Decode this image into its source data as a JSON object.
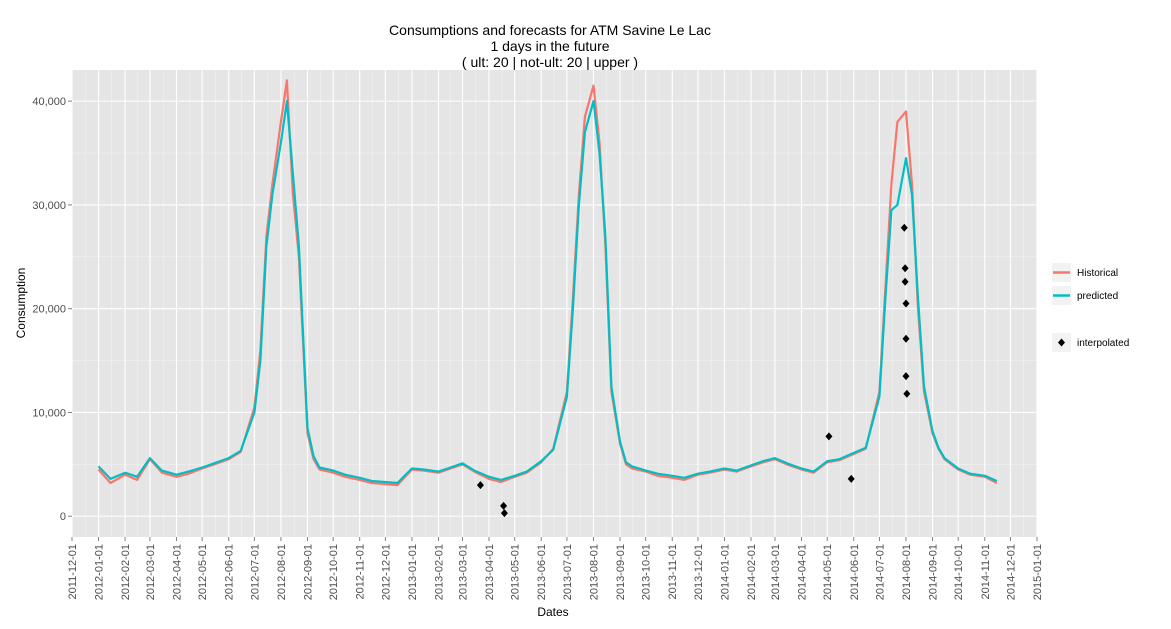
{
  "chart_data": {
    "type": "line",
    "title_lines": [
      "Consumptions and forecasts for ATM Savine Le Lac",
      "1 days in the future",
      "( ult: 20 | not-ult: 20 | upper )"
    ],
    "xlabel": "Dates",
    "ylabel": "Consumption",
    "xlim": [
      "2011-12-01",
      "2015-01-01"
    ],
    "ylim": [
      -2000,
      43000
    ],
    "yticks": [
      0,
      10000,
      20000,
      30000,
      40000
    ],
    "ytick_labels": [
      "0",
      "10,000",
      "20,000",
      "30,000",
      "40,000"
    ],
    "xticks": [
      "2011-12-01",
      "2012-01-01",
      "2012-02-01",
      "2012-03-01",
      "2012-04-01",
      "2012-05-01",
      "2012-06-01",
      "2012-07-01",
      "2012-08-01",
      "2012-09-01",
      "2012-10-01",
      "2012-11-01",
      "2012-12-01",
      "2013-01-01",
      "2013-02-01",
      "2013-03-01",
      "2013-04-01",
      "2013-05-01",
      "2013-06-01",
      "2013-07-01",
      "2013-08-01",
      "2013-09-01",
      "2013-10-01",
      "2013-11-01",
      "2013-12-01",
      "2014-01-01",
      "2014-02-01",
      "2014-03-01",
      "2014-04-01",
      "2014-05-01",
      "2014-06-01",
      "2014-07-01",
      "2014-08-01",
      "2014-09-01",
      "2014-10-01",
      "2014-11-01",
      "2014-12-01",
      "2015-01-01"
    ],
    "grid": true,
    "legend_position": "right",
    "series": [
      {
        "name": "Historical",
        "color": "#F8766D",
        "x": [
          "2012-01-01",
          "2012-01-15",
          "2012-02-01",
          "2012-02-15",
          "2012-03-01",
          "2012-03-15",
          "2012-04-01",
          "2012-04-15",
          "2012-05-01",
          "2012-05-15",
          "2012-06-01",
          "2012-06-15",
          "2012-07-01",
          "2012-07-08",
          "2012-07-15",
          "2012-07-22",
          "2012-08-01",
          "2012-08-08",
          "2012-08-15",
          "2012-08-22",
          "2012-09-01",
          "2012-09-08",
          "2012-09-15",
          "2012-10-01",
          "2012-10-15",
          "2012-11-01",
          "2012-11-15",
          "2012-12-01",
          "2012-12-15",
          "2013-01-01",
          "2013-01-15",
          "2013-02-01",
          "2013-02-15",
          "2013-03-01",
          "2013-03-15",
          "2013-04-01",
          "2013-04-15",
          "2013-05-01",
          "2013-05-15",
          "2013-06-01",
          "2013-06-15",
          "2013-07-01",
          "2013-07-08",
          "2013-07-15",
          "2013-07-22",
          "2013-08-01",
          "2013-08-08",
          "2013-08-15",
          "2013-08-22",
          "2013-09-01",
          "2013-09-08",
          "2013-09-15",
          "2013-10-01",
          "2013-10-15",
          "2013-11-01",
          "2013-11-15",
          "2013-12-01",
          "2013-12-15",
          "2014-01-01",
          "2014-01-15",
          "2014-02-01",
          "2014-02-15",
          "2014-03-01",
          "2014-03-15",
          "2014-04-01",
          "2014-04-15",
          "2014-05-01",
          "2014-05-15",
          "2014-06-01",
          "2014-06-15",
          "2014-07-01",
          "2014-07-08",
          "2014-07-15",
          "2014-07-22",
          "2014-08-01",
          "2014-08-08",
          "2014-08-15",
          "2014-08-22",
          "2014-09-01",
          "2014-09-08",
          "2014-09-15",
          "2014-10-01",
          "2014-10-15",
          "2014-11-01",
          "2014-11-15"
        ],
        "values": [
          4500,
          3200,
          4000,
          3500,
          5500,
          4200,
          3800,
          4100,
          4600,
          5000,
          5500,
          6200,
          10500,
          16000,
          27000,
          32000,
          38000,
          42000,
          31000,
          25000,
          8000,
          5500,
          4500,
          4200,
          3800,
          3500,
          3200,
          3100,
          3000,
          4500,
          4400,
          4200,
          4600,
          5000,
          4300,
          3600,
          3300,
          3800,
          4200,
          5200,
          6500,
          12000,
          21000,
          31000,
          38500,
          41500,
          36000,
          26000,
          12000,
          7000,
          5000,
          4600,
          4300,
          3900,
          3700,
          3500,
          4000,
          4200,
          4500,
          4300,
          4800,
          5200,
          5500,
          5000,
          4500,
          4200,
          5200,
          5400,
          6000,
          6500,
          12000,
          22000,
          32000,
          38000,
          39000,
          32000,
          20000,
          12000,
          8000,
          6500,
          5500,
          4500,
          4000,
          3800,
          3200
        ]
      },
      {
        "name": "predicted",
        "color": "#00BFC4",
        "x": [
          "2012-01-01",
          "2012-01-15",
          "2012-02-01",
          "2012-02-15",
          "2012-03-01",
          "2012-03-15",
          "2012-04-01",
          "2012-04-15",
          "2012-05-01",
          "2012-05-15",
          "2012-06-01",
          "2012-06-15",
          "2012-07-01",
          "2012-07-08",
          "2012-07-15",
          "2012-07-22",
          "2012-08-01",
          "2012-08-08",
          "2012-08-15",
          "2012-08-22",
          "2012-09-01",
          "2012-09-08",
          "2012-09-15",
          "2012-10-01",
          "2012-10-15",
          "2012-11-01",
          "2012-11-15",
          "2012-12-01",
          "2012-12-15",
          "2013-01-01",
          "2013-01-15",
          "2013-02-01",
          "2013-02-15",
          "2013-03-01",
          "2013-03-15",
          "2013-04-01",
          "2013-04-15",
          "2013-05-01",
          "2013-05-15",
          "2013-06-01",
          "2013-06-15",
          "2013-07-01",
          "2013-07-08",
          "2013-07-15",
          "2013-07-22",
          "2013-08-01",
          "2013-08-08",
          "2013-08-15",
          "2013-08-22",
          "2013-09-01",
          "2013-09-08",
          "2013-09-15",
          "2013-10-01",
          "2013-10-15",
          "2013-11-01",
          "2013-11-15",
          "2013-12-01",
          "2013-12-15",
          "2014-01-01",
          "2014-01-15",
          "2014-02-01",
          "2014-02-15",
          "2014-03-01",
          "2014-03-15",
          "2014-04-01",
          "2014-04-15",
          "2014-05-01",
          "2014-05-15",
          "2014-06-01",
          "2014-06-15",
          "2014-07-01",
          "2014-07-08",
          "2014-07-15",
          "2014-07-22",
          "2014-08-01",
          "2014-08-08",
          "2014-08-15",
          "2014-08-22",
          "2014-09-01",
          "2014-09-08",
          "2014-09-15",
          "2014-10-01",
          "2014-10-15",
          "2014-11-01",
          "2014-11-15"
        ],
        "values": [
          4800,
          3600,
          4200,
          3800,
          5600,
          4400,
          4000,
          4300,
          4700,
          5100,
          5600,
          6300,
          10000,
          15000,
          26000,
          31000,
          36000,
          40000,
          33000,
          26000,
          8500,
          5800,
          4700,
          4400,
          4000,
          3700,
          3400,
          3300,
          3200,
          4600,
          4500,
          4300,
          4700,
          5100,
          4400,
          3800,
          3500,
          3900,
          4300,
          5300,
          6400,
          11500,
          20000,
          30000,
          37000,
          40000,
          35000,
          27000,
          12500,
          7200,
          5200,
          4800,
          4400,
          4100,
          3900,
          3700,
          4100,
          4300,
          4600,
          4400,
          4900,
          5300,
          5600,
          5100,
          4600,
          4300,
          5300,
          5500,
          6100,
          6600,
          11500,
          21000,
          29500,
          30000,
          34500,
          31000,
          21000,
          12500,
          8200,
          6600,
          5600,
          4600,
          4100,
          3900,
          3400
        ]
      }
    ],
    "interpolated": {
      "name": "interpolated",
      "color": "#000000",
      "x": [
        "2013-03-22",
        "2013-04-18",
        "2013-04-19",
        "2014-05-03",
        "2014-05-29",
        "2014-07-30",
        "2014-07-31",
        "2014-07-31",
        "2014-08-01",
        "2014-08-01",
        "2014-08-01",
        "2014-08-02"
      ],
      "values": [
        3000,
        1000,
        300,
        7700,
        3600,
        27800,
        23900,
        22600,
        20500,
        17100,
        13500,
        11800
      ]
    }
  },
  "legend": {
    "items": [
      {
        "label": "Historical",
        "color": "#F8766D"
      },
      {
        "label": "predicted",
        "color": "#00BFC4"
      },
      {
        "label": "interpolated",
        "color": "#000000"
      }
    ]
  }
}
